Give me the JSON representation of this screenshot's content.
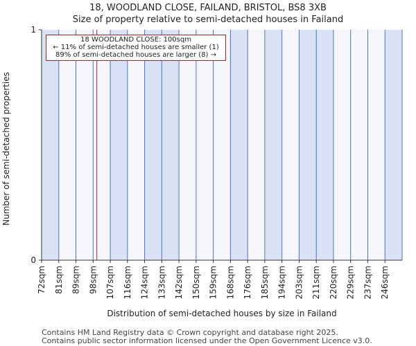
{
  "chart_data": {
    "type": "bar",
    "title": "18, WOODLAND CLOSE, FAILAND, BRISTOL, BS8 3XB",
    "subtitle": "Size of property relative to semi-detached houses in Failand",
    "xlabel": "Distribution of semi-detached houses by size in Failand",
    "ylabel": "Number of semi-detached properties",
    "categories": [
      "72sqm",
      "81sqm",
      "89sqm",
      "98sqm",
      "107sqm",
      "116sqm",
      "124sqm",
      "133sqm",
      "142sqm",
      "150sqm",
      "159sqm",
      "168sqm",
      "176sqm",
      "185sqm",
      "194sqm",
      "203sqm",
      "211sqm",
      "220sqm",
      "229sqm",
      "237sqm",
      "246sqm"
    ],
    "values": [
      1,
      0,
      0,
      0,
      1,
      0,
      1,
      1,
      0,
      0,
      0,
      1,
      0,
      1,
      0,
      1,
      1,
      0,
      0,
      0,
      1
    ],
    "ylim": [
      0,
      1
    ],
    "yticks": [
      0,
      1
    ],
    "marker": {
      "value": 100,
      "label": "18 WOODLAND CLOSE: 100sqm"
    },
    "annotation": {
      "line1": "18 WOODLAND CLOSE: 100sqm",
      "line2": "← 11% of semi-detached houses are smaller (1)",
      "line3": "89% of semi-detached houses are larger (8) →"
    },
    "colors": {
      "bar": "#dae3f5",
      "bar_edge": "#4a72c4",
      "background": "#f5f7fd",
      "marker": "#b22222"
    }
  },
  "footer": {
    "line1": "Contains HM Land Registry data © Crown copyright and database right 2025.",
    "line2": "Contains public sector information licensed under the Open Government Licence v3.0."
  }
}
